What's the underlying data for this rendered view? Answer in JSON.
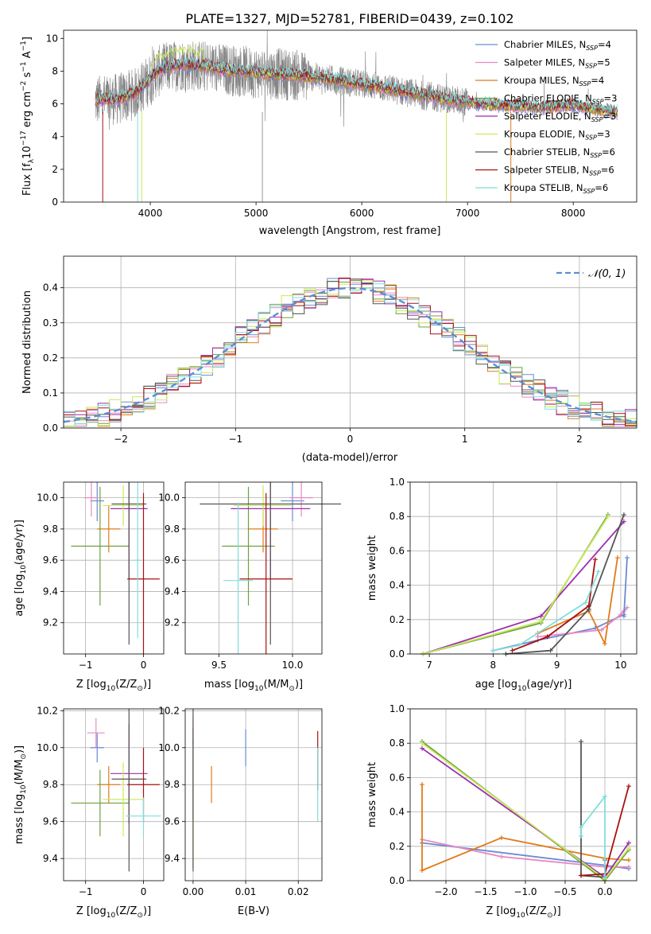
{
  "chart_data": [
    {
      "type": "line",
      "id": "spectrum",
      "title": "PLATE=1327, MJD=52781, FIBERID=0439, z=0.102",
      "xlabel": "wavelength [Angstrom, rest frame]",
      "ylabel_parts": [
        "Flux [f",
        "λ",
        "10",
        "−17",
        " erg cm",
        "−2",
        " s",
        "−1",
        " A",
        "−1",
        "]"
      ],
      "xlim": [
        3180,
        8600
      ],
      "ylim": [
        0,
        10.5
      ],
      "xticks": [
        4000,
        5000,
        6000,
        7000,
        8000
      ],
      "yticks": [
        0,
        2,
        4,
        6,
        8,
        10
      ],
      "legend": "top-right",
      "series": [
        {
          "name": "Chabrier MILES, N",
          "sub": "SSP",
          "count": "=4",
          "color": "#6a8ad2"
        },
        {
          "name": "Salpeter MILES, N",
          "sub": "SSP",
          "count": "=5",
          "color": "#e78ac3"
        },
        {
          "name": "Kroupa MILES, N",
          "sub": "SSP",
          "count": "=4",
          "color": "#e07b1a"
        },
        {
          "name": "Chabrier ELODIE, N",
          "sub": "SSP",
          "count": "=3",
          "color": "#6ea040"
        },
        {
          "name": "Salpeter ELODIE, N",
          "sub": "SSP",
          "count": "=3",
          "color": "#9b2fae"
        },
        {
          "name": "Kroupa ELODIE, N",
          "sub": "SSP",
          "count": "=3",
          "color": "#c9ea5c"
        },
        {
          "name": "Chabrier STELIB, N",
          "sub": "SSP",
          "count": "=6",
          "color": "#555555"
        },
        {
          "name": "Salpeter STELIB, N",
          "sub": "SSP",
          "count": "=6",
          "color": "#a81010"
        },
        {
          "name": "Kroupa STELIB, N",
          "sub": "SSP",
          "count": "=6",
          "color": "#7fdede"
        }
      ],
      "observed_color": "#808080",
      "continuum": [
        [
          3500,
          6.2
        ],
        [
          3700,
          6.3
        ],
        [
          3850,
          6.6
        ],
        [
          3950,
          7.2
        ],
        [
          4050,
          7.9
        ],
        [
          4150,
          8.2
        ],
        [
          4300,
          8.4
        ],
        [
          4500,
          8.3
        ],
        [
          4700,
          8.1
        ],
        [
          5000,
          7.9
        ],
        [
          5300,
          7.8
        ],
        [
          5600,
          7.6
        ],
        [
          5900,
          7.3
        ],
        [
          6200,
          7.0
        ],
        [
          6500,
          6.6
        ],
        [
          6800,
          6.3
        ],
        [
          7100,
          6.0
        ],
        [
          7400,
          5.9
        ],
        [
          7700,
          5.8
        ],
        [
          8000,
          5.9
        ],
        [
          8300,
          5.6
        ],
        [
          8400,
          5.5
        ]
      ]
    },
    {
      "type": "line",
      "id": "residuals",
      "xlabel": "(data-model)/error",
      "ylabel": "Normed distribution",
      "xlim": [
        -2.5,
        2.5
      ],
      "ylim": [
        0,
        0.49
      ],
      "xticks": [
        -2,
        -1,
        0,
        1,
        2
      ],
      "yticks": [
        0.0,
        0.1,
        0.2,
        0.3,
        0.4
      ],
      "reference": "𝒩(0, 1)",
      "reference_color": "#5b8fd6",
      "bins": 50
    },
    {
      "type": "scatter",
      "id": "age-vs-z",
      "xlabel": "Z [log",
      "xlabel_sub": "10",
      "xlabel_tail": "(Z/Z",
      "xlabel_sun": "⊙",
      "xlabel_end": ")]",
      "ylabel": "age  [log",
      "ylabel_sub": "10",
      "ylabel_tail": "(age/yr)]",
      "xlim": [
        -1.38,
        0.35
      ],
      "ylim": [
        9.0,
        10.1
      ],
      "xticks": [
        -1,
        0
      ],
      "yticks": [
        9.2,
        9.4,
        9.6,
        9.8,
        10.0
      ],
      "points": [
        {
          "x": -0.8,
          "xerr": 0.12,
          "y": 9.98,
          "yerr": 0.13
        },
        {
          "x": -0.9,
          "xerr": 0.12,
          "y": 10.0,
          "yerr": 0.12
        },
        {
          "x": -0.6,
          "xerr": 0.2,
          "y": 9.8,
          "yerr": 0.15
        },
        {
          "x": -0.75,
          "xerr": 0.5,
          "y": 9.69,
          "yerr": 0.38
        },
        {
          "x": -0.25,
          "xerr": 0.32,
          "y": 9.93,
          "yerr": 0.45
        },
        {
          "x": -0.35,
          "xerr": 0.35,
          "y": 9.95,
          "yerr": 0.13
        },
        {
          "x": -0.25,
          "xerr": 0.3,
          "y": 9.96,
          "yerr": 0.9
        },
        {
          "x": 0.0,
          "xerr": 0.28,
          "y": 9.48,
          "yerr": 0.55
        },
        {
          "x": -0.1,
          "xerr": 0.05,
          "y": 9.6,
          "yerr": 0.5
        }
      ]
    },
    {
      "type": "scatter",
      "id": "age-vs-mass",
      "xlabel": "mass [log",
      "xlabel_sub": "10",
      "xlabel_tail": "(M/M",
      "xlabel_sun": "⊙",
      "xlabel_end": ")]",
      "xlim": [
        9.27,
        10.2
      ],
      "ylim": [
        9.0,
        10.1
      ],
      "xticks": [
        9.5,
        10.0
      ],
      "yticks": [
        9.2,
        9.4,
        9.6,
        9.8,
        10.0
      ],
      "points": [
        {
          "x": 10.0,
          "xerr": 0.08,
          "y": 9.98,
          "yerr": 0.13
        },
        {
          "x": 10.06,
          "xerr": 0.08,
          "y": 10.0,
          "yerr": 0.12
        },
        {
          "x": 9.8,
          "xerr": 0.1,
          "y": 9.8,
          "yerr": 0.15
        },
        {
          "x": 9.7,
          "xerr": 0.18,
          "y": 9.69,
          "yerr": 0.38
        },
        {
          "x": 9.85,
          "xerr": 0.27,
          "y": 9.93,
          "yerr": 0.45
        },
        {
          "x": 9.8,
          "xerr": 0.2,
          "y": 9.95,
          "yerr": 0.13
        },
        {
          "x": 9.85,
          "xerr": 0.48,
          "y": 9.96,
          "yerr": 0.9
        },
        {
          "x": 9.82,
          "xerr": 0.18,
          "y": 9.48,
          "yerr": 0.55
        },
        {
          "x": 9.63,
          "xerr": 0.1,
          "y": 9.47,
          "yerr": 0.5
        }
      ]
    },
    {
      "type": "line",
      "id": "mass-weight-vs-age",
      "xlabel": "age  [log",
      "xlabel_sub": "10",
      "xlabel_tail": "(age/yr)]",
      "ylabel": "mass weight",
      "xlim": [
        6.7,
        10.25
      ],
      "ylim": [
        0,
        1.0
      ],
      "xticks": [
        7,
        8,
        9,
        10
      ],
      "yticks": [
        0.0,
        0.2,
        0.4,
        0.6,
        0.8,
        1.0
      ],
      "series": [
        {
          "x": [
            8.0,
            8.7,
            9.6,
            10.05
          ],
          "y": [
            0.02,
            0.08,
            0.15,
            0.23
          ]
        },
        {
          "x": [
            8.7,
            9.7,
            10.0,
            10.05,
            10.1
          ],
          "y": [
            0.1,
            0.14,
            0.23,
            0.25,
            0.27
          ]
        },
        {
          "x": [
            8.7,
            9.5,
            9.75,
            9.95
          ],
          "y": [
            0.12,
            0.25,
            0.06,
            0.56
          ]
        },
        {
          "x": [
            6.9,
            8.75,
            9.8
          ],
          "y": [
            0.0,
            0.18,
            0.81
          ]
        },
        {
          "x": [
            6.9,
            8.75,
            10.05
          ],
          "y": [
            0.0,
            0.22,
            0.77
          ]
        },
        {
          "x": [
            6.9,
            8.75,
            9.8
          ],
          "y": [
            0.0,
            0.19,
            0.8
          ]
        },
        {
          "x": [
            8.2,
            8.9,
            9.5,
            10.05
          ],
          "y": [
            0.0,
            0.02,
            0.26,
            0.81
          ]
        },
        {
          "x": [
            8.3,
            8.85,
            9.5,
            9.6
          ],
          "y": [
            0.02,
            0.1,
            0.28,
            0.55
          ]
        },
        {
          "x": [
            8.0,
            8.4,
            9.45,
            9.65
          ],
          "y": [
            0.02,
            0.05,
            0.3,
            0.48
          ]
        },
        {
          "x": [
            10.05,
            10.1
          ],
          "y": [
            0.22,
            0.56
          ]
        }
      ]
    },
    {
      "type": "scatter",
      "id": "mass-vs-z",
      "xlabel": "Z [log",
      "xlabel_sub": "10",
      "xlabel_tail": "(Z/Z",
      "xlabel_sun": "⊙",
      "xlabel_end": ")]",
      "ylabel": "mass [log",
      "ylabel_sub": "10",
      "ylabel_tail": "(M/M",
      "ylabel_sun": "⊙",
      "ylabel_end": ")]",
      "xlim": [
        -1.38,
        0.35
      ],
      "ylim": [
        9.28,
        10.21
      ],
      "xticks": [
        -1,
        0
      ],
      "yticks": [
        9.4,
        9.6,
        9.8,
        10.0,
        10.2
      ],
      "points": [
        {
          "x": -0.8,
          "xerr": 0.12,
          "y": 10.0,
          "yerr": 0.08
        },
        {
          "x": -0.82,
          "xerr": 0.15,
          "y": 10.08,
          "yerr": 0.08
        },
        {
          "x": -0.6,
          "xerr": 0.2,
          "y": 9.8,
          "yerr": 0.1
        },
        {
          "x": -0.75,
          "xerr": 0.5,
          "y": 9.7,
          "yerr": 0.18
        },
        {
          "x": -0.25,
          "xerr": 0.32,
          "y": 9.86,
          "yerr": 0.27
        },
        {
          "x": -0.35,
          "xerr": 0.35,
          "y": 9.72,
          "yerr": 0.2
        },
        {
          "x": -0.25,
          "xerr": 0.3,
          "y": 9.83,
          "yerr": 0.5
        },
        {
          "x": 0.0,
          "xerr": 0.28,
          "y": 9.8,
          "yerr": 0.2
        },
        {
          "x": 0.0,
          "xerr": 0.3,
          "y": 9.63,
          "yerr": 0.1
        }
      ]
    },
    {
      "type": "scatter",
      "id": "mass-vs-ebv",
      "xlabel": "E(B-V)",
      "xlim": [
        -0.0015,
        0.0245
      ],
      "ylim": [
        9.28,
        10.21
      ],
      "xticks": [
        0.0,
        0.01,
        0.02
      ],
      "yticks": [
        9.4,
        9.6,
        9.8,
        10.0,
        10.2
      ],
      "points": [
        {
          "x": 0.01,
          "y": 10.0,
          "yerr": 0.1
        },
        {
          "x": 0.0,
          "y": 10.08,
          "yerr": 0.08
        },
        {
          "x": 0.0035,
          "y": 9.8,
          "yerr": 0.1
        },
        {
          "x": 0.0,
          "y": 9.7,
          "yerr": 0.35
        },
        {
          "x": 0.0,
          "y": 9.86,
          "yerr": 0.25
        },
        {
          "x": 0.0,
          "y": 9.72,
          "yerr": 0.3
        },
        {
          "x": 0.0,
          "y": 9.83,
          "yerr": 0.5
        },
        {
          "x": 0.0237,
          "y": 9.93,
          "yerr": 0.16
        },
        {
          "x": 0.0237,
          "y": 9.8,
          "yerr": 0.2
        }
      ]
    },
    {
      "type": "line",
      "id": "mass-weight-vs-z",
      "xlabel": "Z [log",
      "xlabel_sub": "10",
      "xlabel_tail": "(Z/Z",
      "xlabel_sun": "⊙",
      "xlabel_end": ")]",
      "ylabel": "mass weight",
      "xlim": [
        -2.45,
        0.4
      ],
      "ylim": [
        0,
        1.0
      ],
      "xticks": [
        -2.0,
        -1.5,
        -1.0,
        -0.5,
        0.0
      ],
      "yticks": [
        0.0,
        0.2,
        0.4,
        0.6,
        0.8,
        1.0
      ],
      "series": [
        {
          "x": [
            -2.3,
            0.0,
            0.3
          ],
          "y": [
            0.22,
            0.09,
            0.07
          ]
        },
        {
          "x": [
            -2.3,
            -1.3,
            0.0,
            0.3
          ],
          "y": [
            0.24,
            0.14,
            0.08,
            0.08
          ]
        },
        {
          "x": [
            -2.3,
            -2.3,
            -1.3,
            0.0,
            0.3
          ],
          "y": [
            0.56,
            0.06,
            0.25,
            0.13,
            0.12
          ]
        },
        {
          "x": [
            -2.3,
            0.0,
            0.3
          ],
          "y": [
            0.81,
            0.0,
            0.18
          ]
        },
        {
          "x": [
            -2.3,
            0.0,
            0.3
          ],
          "y": [
            0.77,
            0.02,
            0.22
          ]
        },
        {
          "x": [
            -2.3,
            0.0,
            0.3
          ],
          "y": [
            0.8,
            0.01,
            0.19
          ]
        },
        {
          "x": [
            -0.3,
            -0.3,
            0.0,
            0.0
          ],
          "y": [
            0.81,
            0.03,
            0.02,
            0.12
          ]
        },
        {
          "x": [
            -0.3,
            0.0,
            0.3
          ],
          "y": [
            0.03,
            0.04,
            0.55
          ]
        },
        {
          "x": [
            -0.3,
            -0.3,
            0.0,
            0.0
          ],
          "y": [
            0.26,
            0.31,
            0.49,
            0.02
          ]
        }
      ]
    }
  ]
}
